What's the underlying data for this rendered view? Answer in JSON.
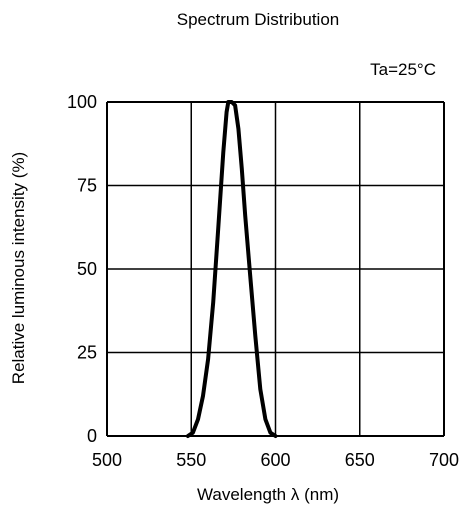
{
  "chart_data": {
    "type": "line",
    "title": "Spectrum Distribution",
    "annotation": "Ta=25°C",
    "xlabel": "Wavelength  λ (nm)",
    "ylabel": "Relative luminous intensity  (%)",
    "xlim": [
      500,
      700
    ],
    "ylim": [
      0,
      100
    ],
    "xticks": [
      500,
      550,
      600,
      650,
      700
    ],
    "yticks": [
      0,
      25,
      50,
      75,
      100
    ],
    "grid": true,
    "series": [
      {
        "color": "#000000",
        "points": [
          [
            548,
            0
          ],
          [
            551,
            1
          ],
          [
            554,
            5
          ],
          [
            557,
            12
          ],
          [
            560,
            23
          ],
          [
            563,
            40
          ],
          [
            566,
            62
          ],
          [
            569,
            85
          ],
          [
            571,
            97
          ],
          [
            572,
            100
          ],
          [
            574,
            100
          ],
          [
            576,
            99
          ],
          [
            578,
            92
          ],
          [
            580,
            80
          ],
          [
            582,
            66
          ],
          [
            585,
            48
          ],
          [
            588,
            30
          ],
          [
            591,
            14
          ],
          [
            594,
            5
          ],
          [
            597,
            1
          ],
          [
            600,
            0
          ]
        ]
      }
    ]
  }
}
